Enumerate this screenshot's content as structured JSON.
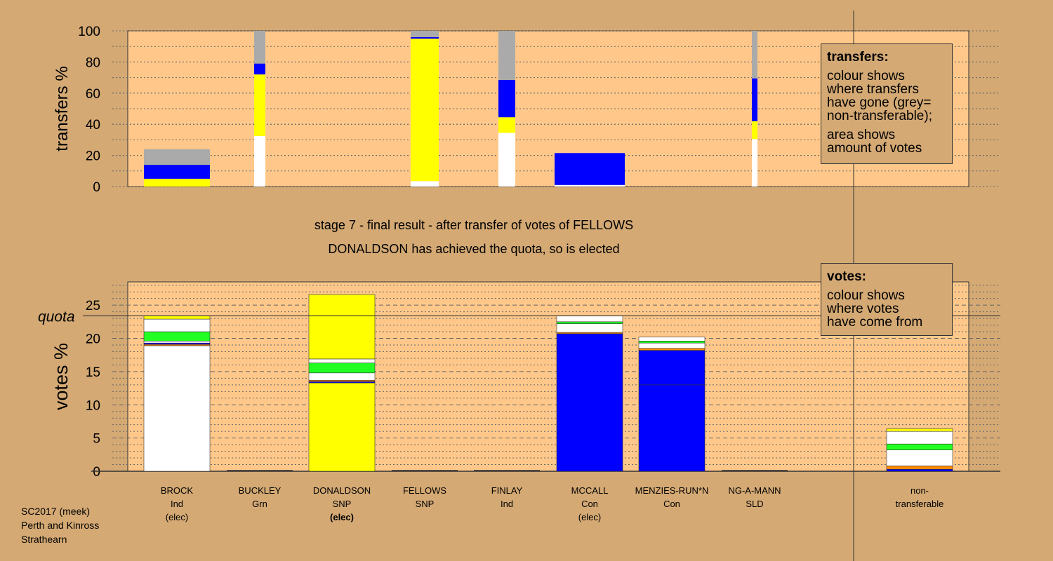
{
  "stage_title": "stage 7 - final result - after transfer of votes of FELLOWS",
  "stage_subtitle": "DONALDSON has achieved the quota, so is elected",
  "footer": [
    "SC2017 (meek)",
    "Perth and Kinross",
    "Strathearn"
  ],
  "colors": {
    "background": "#d4a974",
    "plot_bg": "#ffc88a",
    "Ind": "#ffffff",
    "Grn": "#22ff22",
    "SNP": "#ffff00",
    "Con": "#0000ff",
    "SLD": "#ff8c00",
    "nontransferable": "#aaaaaa"
  },
  "transfers_legend": {
    "title": "transfers:",
    "lines1": [
      "colour shows",
      "where transfers",
      "have gone (grey=",
      "non-transferable);"
    ],
    "lines2": [
      "area shows",
      "amount of votes"
    ]
  },
  "votes_legend": {
    "title": "votes:",
    "lines": [
      "colour shows",
      "where votes",
      "have come from"
    ]
  },
  "candidates": [
    {
      "name": "BROCK",
      "party": "Ind",
      "status": "(elec)",
      "status_bold": false
    },
    {
      "name": "BUCKLEY",
      "party": "Grn",
      "status": "",
      "status_bold": false
    },
    {
      "name": "DONALDSON",
      "party": "SNP",
      "status": "(elec)",
      "status_bold": true
    },
    {
      "name": "FELLOWS",
      "party": "SNP",
      "status": "",
      "status_bold": false
    },
    {
      "name": "FINLAY",
      "party": "Ind",
      "status": "",
      "status_bold": false
    },
    {
      "name": "MCCALL",
      "party": "Con",
      "status": "(elec)",
      "status_bold": false
    },
    {
      "name": "MENZIES-RUN*N",
      "party": "Con",
      "status": "",
      "status_bold": false
    },
    {
      "name": "NG-A-MANN",
      "party": "SLD",
      "status": "",
      "status_bold": false
    },
    {
      "name": "non-",
      "party": "transferable",
      "status": "",
      "status_bold": false
    }
  ],
  "chart_data": [
    {
      "type": "bar",
      "name": "transfers",
      "ylabel": "transfers %",
      "ylim": [
        0,
        100
      ],
      "yticks": [
        0,
        20,
        40,
        60,
        80,
        100
      ],
      "bars": [
        {
          "candidate": "BROCK",
          "segments": [
            {
              "party": "SNP",
              "from": 0,
              "to": 5
            },
            {
              "party": "Con",
              "from": 5,
              "to": 14
            },
            {
              "party": "nontransferable",
              "from": 14,
              "to": 24
            }
          ]
        },
        {
          "candidate": "BUCKLEY",
          "segments": [
            {
              "party": "Ind",
              "from": 0,
              "to": 32.5
            },
            {
              "party": "SNP",
              "from": 32.5,
              "to": 72
            },
            {
              "party": "Con",
              "from": 72,
              "to": 79
            },
            {
              "party": "nontransferable",
              "from": 79,
              "to": 100
            }
          ]
        },
        {
          "candidate": "FELLOWS",
          "segments": [
            {
              "party": "Ind",
              "from": 0,
              "to": 3.5
            },
            {
              "party": "SNP",
              "from": 3.5,
              "to": 95
            },
            {
              "party": "Con",
              "from": 95,
              "to": 96
            },
            {
              "party": "nontransferable",
              "from": 96,
              "to": 100
            }
          ]
        },
        {
          "candidate": "FINLAY",
          "segments": [
            {
              "party": "Ind",
              "from": 0,
              "to": 34.5
            },
            {
              "party": "SNP",
              "from": 34.5,
              "to": 44.5
            },
            {
              "party": "Con",
              "from": 44.5,
              "to": 68.5
            },
            {
              "party": "nontransferable",
              "from": 68.5,
              "to": 100
            }
          ]
        },
        {
          "candidate": "MCCALL",
          "segments": [
            {
              "party": "Ind",
              "from": 0,
              "to": 1
            },
            {
              "party": "Con",
              "from": 1,
              "to": 21.5
            }
          ]
        },
        {
          "candidate": "NG-A-MANN",
          "segments": [
            {
              "party": "Ind",
              "from": 0,
              "to": 30.5
            },
            {
              "party": "SNP",
              "from": 30.5,
              "to": 42
            },
            {
              "party": "Con",
              "from": 42,
              "to": 69.5
            },
            {
              "party": "nontransferable",
              "from": 69.5,
              "to": 100
            }
          ]
        }
      ]
    },
    {
      "type": "bar",
      "name": "votes",
      "ylabel": "votes %",
      "ylim": [
        0,
        28.5
      ],
      "yticks": [
        0,
        5,
        10,
        15,
        20,
        25
      ],
      "quota": 23.4,
      "quota_label": "quota",
      "bars": [
        {
          "candidate": "BROCK",
          "segments": [
            {
              "party": "Ind",
              "from": 0,
              "to": 18.9
            },
            {
              "party": "SLD",
              "from": 18.9,
              "to": 19.1
            },
            {
              "party": "Con",
              "from": 19.1,
              "to": 19.3
            },
            {
              "party": "Ind",
              "from": 19.3,
              "to": 19.6
            },
            {
              "party": "Grn",
              "from": 19.6,
              "to": 21.0
            },
            {
              "party": "Ind",
              "from": 21.0,
              "to": 22.9
            },
            {
              "party": "SNP",
              "from": 22.9,
              "to": 23.4
            }
          ]
        },
        {
          "candidate": "DONALDSON",
          "segments": [
            {
              "party": "SNP",
              "from": 0,
              "to": 13.3
            },
            {
              "party": "Con",
              "from": 13.3,
              "to": 13.5
            },
            {
              "party": "SLD",
              "from": 13.5,
              "to": 13.7
            },
            {
              "party": "Ind",
              "from": 13.7,
              "to": 14.8
            },
            {
              "party": "Grn",
              "from": 14.8,
              "to": 16.3
            },
            {
              "party": "Ind",
              "from": 16.3,
              "to": 16.9
            },
            {
              "party": "SNP",
              "from": 16.9,
              "to": 26.6
            }
          ]
        },
        {
          "candidate": "MCCALL",
          "segments": [
            {
              "party": "Con",
              "from": 0,
              "to": 20.7
            },
            {
              "party": "SLD",
              "from": 20.7,
              "to": 20.9
            },
            {
              "party": "Ind",
              "from": 20.9,
              "to": 22.2
            },
            {
              "party": "Grn",
              "from": 22.2,
              "to": 22.5
            },
            {
              "party": "Ind",
              "from": 22.5,
              "to": 23.4
            }
          ]
        },
        {
          "candidate": "MENZIES-RUN*N",
          "segments": [
            {
              "party": "Con",
              "from": 0,
              "to": 13.0
            },
            {
              "party": "Con",
              "from": 13.0,
              "to": 18.2
            },
            {
              "party": "SLD",
              "from": 18.2,
              "to": 18.5
            },
            {
              "party": "Ind",
              "from": 18.5,
              "to": 19.3
            },
            {
              "party": "Grn",
              "from": 19.3,
              "to": 19.6
            },
            {
              "party": "Ind",
              "from": 19.6,
              "to": 20.2
            }
          ]
        },
        {
          "candidate": "non-transferable",
          "segments": [
            {
              "party": "Con",
              "from": 0,
              "to": 0.3
            },
            {
              "party": "SLD",
              "from": 0.3,
              "to": 0.8
            },
            {
              "party": "Ind",
              "from": 0.8,
              "to": 3.2
            },
            {
              "party": "Grn",
              "from": 3.2,
              "to": 4.1
            },
            {
              "party": "Ind",
              "from": 4.1,
              "to": 6.0
            },
            {
              "party": "SNP",
              "from": 6.0,
              "to": 6.4
            }
          ]
        }
      ]
    }
  ]
}
